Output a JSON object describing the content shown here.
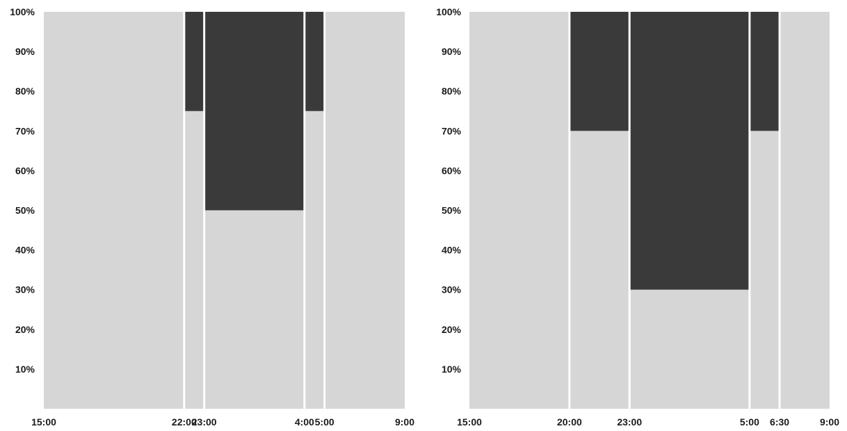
{
  "colors": {
    "light": "#d6d6d6",
    "dark": "#3a3a3a",
    "separator": "#ffffff",
    "text": "#1a1a1a"
  },
  "chart_data": [
    {
      "type": "bar",
      "variant": "stacked-variable-width",
      "title": "",
      "xlabel": "",
      "ylabel": "",
      "ylim": [
        0,
        100
      ],
      "y_ticks": [
        "10%",
        "20%",
        "30%",
        "40%",
        "50%",
        "60%",
        "70%",
        "80%",
        "90%",
        "100%"
      ],
      "x_ticks": [
        "15:00",
        "22:00",
        "23:00",
        "4:00",
        "5:00",
        "9:00"
      ],
      "grid": false,
      "legend": "none",
      "segments": [
        {
          "start": "15:00",
          "end": "22:00",
          "light": 100,
          "dark": 0
        },
        {
          "start": "22:00",
          "end": "23:00",
          "light": 75,
          "dark": 25
        },
        {
          "start": "23:00",
          "end": "4:00",
          "light": 50,
          "dark": 50
        },
        {
          "start": "4:00",
          "end": "5:00",
          "light": 75,
          "dark": 25
        },
        {
          "start": "5:00",
          "end": "9:00",
          "light": 100,
          "dark": 0
        }
      ]
    },
    {
      "type": "bar",
      "variant": "stacked-variable-width",
      "title": "",
      "xlabel": "",
      "ylabel": "",
      "ylim": [
        0,
        100
      ],
      "y_ticks": [
        "10%",
        "20%",
        "30%",
        "40%",
        "50%",
        "60%",
        "70%",
        "80%",
        "90%",
        "100%"
      ],
      "x_ticks": [
        "15:00",
        "20:00",
        "23:00",
        "5:00",
        "6:30",
        "9:00"
      ],
      "grid": false,
      "legend": "none",
      "segments": [
        {
          "start": "15:00",
          "end": "20:00",
          "light": 100,
          "dark": 0
        },
        {
          "start": "20:00",
          "end": "23:00",
          "light": 70,
          "dark": 30
        },
        {
          "start": "23:00",
          "end": "5:00",
          "light": 30,
          "dark": 70
        },
        {
          "start": "5:00",
          "end": "6:30",
          "light": 70,
          "dark": 30
        },
        {
          "start": "6:30",
          "end": "9:00",
          "light": 100,
          "dark": 0
        }
      ]
    }
  ]
}
